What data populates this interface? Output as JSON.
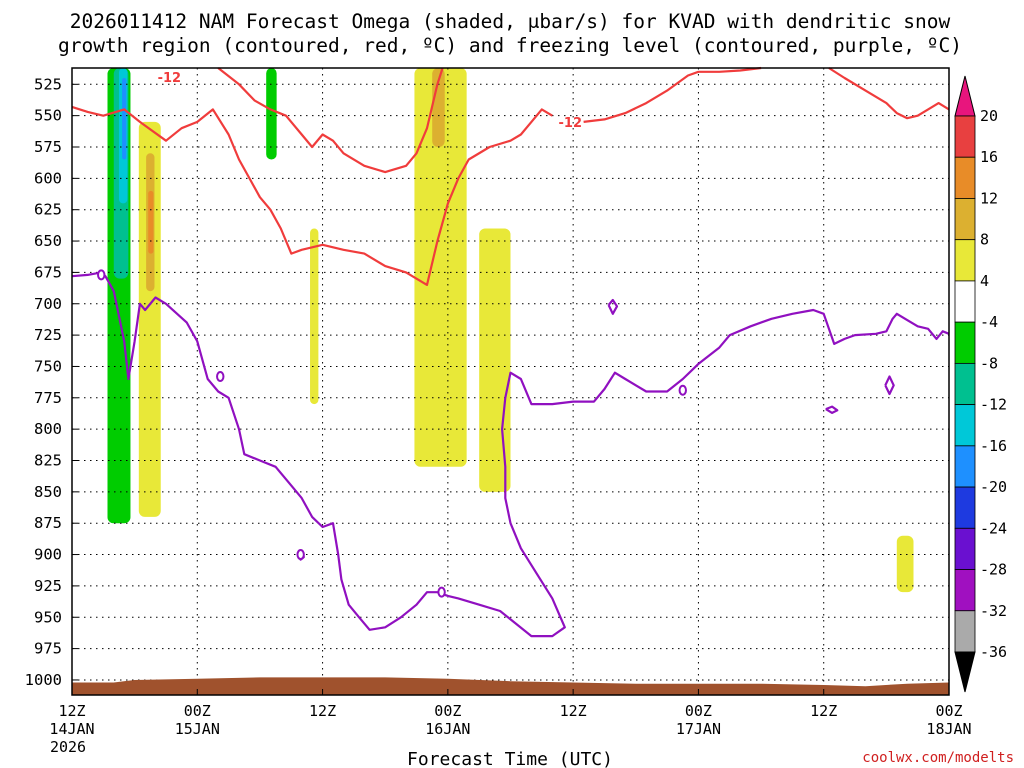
{
  "chart_data": {
    "type": "heatmap",
    "title_lines": [
      "2026011412 NAM Forecast Omega (shaded, μbar/s) for KVAD with dendritic snow",
      "growth region (contoured, red, ºC) and freezing level (contoured, purple, ºC)"
    ],
    "xlabel": "Forecast Time (UTC)",
    "credit": "coolwx.com/modelts",
    "x_ticks": [
      {
        "hour": 0,
        "lines": [
          "12Z",
          "14JAN",
          "2026"
        ]
      },
      {
        "hour": 12,
        "lines": [
          "00Z",
          "15JAN"
        ]
      },
      {
        "hour": 24,
        "lines": [
          "12Z"
        ]
      },
      {
        "hour": 36,
        "lines": [
          "00Z",
          "16JAN"
        ]
      },
      {
        "hour": 48,
        "lines": [
          "12Z"
        ]
      },
      {
        "hour": 60,
        "lines": [
          "00Z",
          "17JAN"
        ]
      },
      {
        "hour": 72,
        "lines": [
          "12Z"
        ]
      },
      {
        "hour": 84,
        "lines": [
          "00Z",
          "18JAN"
        ]
      }
    ],
    "xlim": [
      0,
      84
    ],
    "y_ticks": [
      525,
      550,
      575,
      600,
      625,
      650,
      675,
      700,
      725,
      750,
      775,
      800,
      825,
      850,
      875,
      900,
      925,
      950,
      975,
      1000
    ],
    "ylim": [
      512,
      1012
    ],
    "colorbar": {
      "labels": [
        "20",
        "16",
        "12",
        "8",
        "4",
        "-4",
        "-8",
        "-12",
        "-16",
        "-20",
        "-24",
        "-28",
        "-32",
        "-36"
      ],
      "bands": [
        {
          "color": "#e8e838",
          "from": 4,
          "to": 8
        },
        {
          "color": "#dcb030",
          "from": 8,
          "to": 12
        },
        {
          "color": "#e88c28",
          "from": 12,
          "to": 16
        },
        {
          "color": "#e84040",
          "from": 16,
          "to": 20
        },
        {
          "color": "#00cc00",
          "from": -8,
          "to": -4
        },
        {
          "color": "#00c090",
          "from": -12,
          "to": -8
        },
        {
          "color": "#00c8d8",
          "from": -16,
          "to": -12
        },
        {
          "color": "#1e90ff",
          "from": -20,
          "to": -16
        },
        {
          "color": "#1e3ae0",
          "from": -24,
          "to": -20
        },
        {
          "color": "#6a10d0",
          "from": -28,
          "to": -24
        },
        {
          "color": "#a010c0",
          "from": -32,
          "to": -28
        },
        {
          "color": "#aaaaaa",
          "from": -36,
          "to": -32
        }
      ]
    },
    "omega_regions": [
      {
        "color": "#00cc00",
        "hours": [
          3.4,
          5.6
        ],
        "pressures": [
          512,
          875
        ]
      },
      {
        "color": "#00c090",
        "hours": [
          4.0,
          5.4
        ],
        "pressures": [
          512,
          680
        ]
      },
      {
        "color": "#00c8d8",
        "hours": [
          4.5,
          5.3
        ],
        "pressures": [
          512,
          620
        ]
      },
      {
        "color": "#1e90ff",
        "hours": [
          4.8,
          5.2
        ],
        "pressures": [
          520,
          585
        ]
      },
      {
        "color": "#e8e838",
        "hours": [
          6.4,
          8.5
        ],
        "pressures": [
          555,
          870
        ]
      },
      {
        "color": "#dcb030",
        "hours": [
          7.1,
          7.9
        ],
        "pressures": [
          580,
          690
        ]
      },
      {
        "color": "#e88c28",
        "hours": [
          7.3,
          7.8
        ],
        "pressures": [
          610,
          660
        ]
      },
      {
        "color": "#00cc00",
        "hours": [
          18.6,
          19.6
        ],
        "pressures": [
          512,
          585
        ]
      },
      {
        "color": "#e8e838",
        "hours": [
          22.8,
          23.6
        ],
        "pressures": [
          640,
          780
        ]
      },
      {
        "color": "#e8e838",
        "hours": [
          32.8,
          37.8
        ],
        "pressures": [
          512,
          830
        ]
      },
      {
        "color": "#dcb030",
        "hours": [
          34.5,
          35.7
        ],
        "pressures": [
          512,
          575
        ]
      },
      {
        "color": "#e8e838",
        "hours": [
          39.0,
          42.0
        ],
        "pressures": [
          640,
          850
        ]
      },
      {
        "color": "#e8e838",
        "hours": [
          79.0,
          80.6
        ],
        "pressures": [
          885,
          930
        ]
      }
    ],
    "dendritic_contours": [
      {
        "label": "-12",
        "points": [
          [
            0,
            543
          ],
          [
            1.5,
            547
          ],
          [
            3,
            550
          ],
          [
            5,
            545
          ],
          [
            6.5,
            555
          ],
          [
            9,
            570
          ],
          [
            10.5,
            560
          ],
          [
            12,
            555
          ],
          [
            13.5,
            545
          ],
          [
            15,
            565
          ],
          [
            16,
            585
          ],
          [
            17,
            600
          ],
          [
            18,
            615
          ],
          [
            19,
            625
          ],
          [
            20,
            640
          ],
          [
            21,
            660
          ],
          [
            22,
            657
          ],
          [
            24,
            653
          ],
          [
            26,
            657
          ],
          [
            28,
            660
          ],
          [
            30,
            670
          ],
          [
            32,
            675
          ],
          [
            34,
            685
          ],
          [
            35,
            650
          ],
          [
            36,
            620
          ],
          [
            37,
            600
          ],
          [
            38,
            585
          ],
          [
            40,
            575
          ],
          [
            42,
            570
          ],
          [
            43,
            565
          ],
          [
            44,
            555
          ],
          [
            45,
            545
          ],
          [
            46,
            550
          ]
        ]
      },
      {
        "label": "-12",
        "points": [
          [
            14,
            512
          ],
          [
            16,
            525
          ],
          [
            17.5,
            538
          ],
          [
            19,
            545
          ],
          [
            20.5,
            550
          ],
          [
            22,
            565
          ],
          [
            23,
            575
          ],
          [
            24,
            565
          ],
          [
            25,
            570
          ],
          [
            26,
            580
          ],
          [
            28,
            590
          ],
          [
            30,
            595
          ],
          [
            32,
            590
          ],
          [
            33,
            580
          ],
          [
            34,
            560
          ],
          [
            35,
            525
          ],
          [
            35.5,
            512
          ]
        ]
      },
      {
        "label": "",
        "points": [
          [
            49,
            555
          ],
          [
            51,
            553
          ],
          [
            53,
            548
          ],
          [
            55,
            540
          ],
          [
            57,
            530
          ],
          [
            59,
            518
          ],
          [
            60,
            515
          ],
          [
            62,
            515
          ],
          [
            64,
            514
          ],
          [
            66,
            512
          ]
        ]
      },
      {
        "label": "",
        "points": [
          [
            72.5,
            512
          ],
          [
            74,
            520
          ],
          [
            76,
            530
          ],
          [
            78,
            540
          ],
          [
            79,
            548
          ],
          [
            80,
            552
          ],
          [
            81,
            550
          ],
          [
            82,
            545
          ],
          [
            83,
            540
          ],
          [
            84,
            545
          ]
        ]
      }
    ],
    "freezing_contours": [
      {
        "label": "0",
        "points": [
          [
            0,
            678
          ],
          [
            1.5,
            677
          ],
          [
            2.8,
            675
          ],
          [
            3.2,
            678
          ],
          [
            4,
            690
          ],
          [
            5,
            730
          ],
          [
            5.4,
            760
          ],
          [
            6,
            730
          ],
          [
            6.5,
            700
          ],
          [
            7,
            705
          ],
          [
            8,
            695
          ],
          [
            9,
            700
          ],
          [
            11,
            715
          ],
          [
            12,
            730
          ],
          [
            13,
            760
          ],
          [
            14,
            770
          ],
          [
            15,
            775
          ],
          [
            16,
            800
          ],
          [
            16.5,
            820
          ],
          [
            18,
            825
          ],
          [
            19.5,
            830
          ],
          [
            21,
            845
          ],
          [
            22,
            855
          ],
          [
            23,
            870
          ],
          [
            24,
            878
          ],
          [
            25,
            875
          ],
          [
            25.5,
            900
          ],
          [
            25.8,
            920
          ],
          [
            26.5,
            940
          ],
          [
            27.5,
            950
          ],
          [
            28.5,
            960
          ],
          [
            30,
            958
          ],
          [
            31.5,
            950
          ],
          [
            33,
            940
          ],
          [
            34,
            930
          ],
          [
            35,
            930
          ],
          [
            36,
            933
          ],
          [
            37,
            935
          ],
          [
            39,
            940
          ],
          [
            41,
            945
          ],
          [
            42.5,
            955
          ],
          [
            44,
            965
          ],
          [
            46,
            965
          ],
          [
            47.2,
            958
          ],
          [
            46,
            935
          ],
          [
            44.5,
            915
          ],
          [
            43,
            895
          ],
          [
            42,
            875
          ],
          [
            41.5,
            855
          ],
          [
            41.5,
            830
          ],
          [
            41.2,
            800
          ],
          [
            41.5,
            775
          ],
          [
            42,
            755
          ],
          [
            43,
            760
          ],
          [
            44,
            780
          ],
          [
            46,
            780
          ],
          [
            48,
            778
          ],
          [
            50,
            778
          ],
          [
            51,
            768
          ],
          [
            52,
            755
          ],
          [
            53,
            760
          ],
          [
            54,
            765
          ],
          [
            55,
            770
          ],
          [
            57,
            770
          ],
          [
            58.5,
            760
          ],
          [
            60,
            748
          ],
          [
            62,
            735
          ],
          [
            63,
            725
          ],
          [
            65,
            718
          ],
          [
            67,
            712
          ],
          [
            69,
            708
          ],
          [
            71,
            705
          ],
          [
            72,
            708
          ],
          [
            73,
            732
          ],
          [
            73.5,
            730
          ],
          [
            74,
            728
          ],
          [
            75,
            725
          ],
          [
            77,
            724
          ],
          [
            78,
            722
          ],
          [
            78.6,
            712
          ],
          [
            79,
            708
          ],
          [
            80,
            713
          ],
          [
            81,
            718
          ],
          [
            82,
            720
          ],
          [
            82.8,
            728
          ],
          [
            83.4,
            722
          ],
          [
            84,
            724
          ]
        ]
      },
      {
        "label": "",
        "points": [
          [
            21.8,
            900
          ],
          [
            22.1,
            898
          ],
          [
            22.2,
            902
          ],
          [
            21.9,
            904
          ],
          [
            21.8,
            900
          ]
        ]
      },
      {
        "label": "",
        "points": [
          [
            51.4,
            701
          ],
          [
            51.8,
            697
          ],
          [
            52.2,
            702
          ],
          [
            51.8,
            708
          ],
          [
            51.4,
            701
          ]
        ]
      },
      {
        "label": "",
        "points": [
          [
            72.2,
            784
          ],
          [
            72.8,
            782
          ],
          [
            73.3,
            785
          ],
          [
            72.8,
            787
          ],
          [
            72.2,
            784
          ]
        ]
      },
      {
        "label": "",
        "points": [
          [
            77.9,
            765
          ],
          [
            78.3,
            758
          ],
          [
            78.7,
            765
          ],
          [
            78.3,
            772
          ],
          [
            77.9,
            765
          ]
        ]
      }
    ],
    "terrain_color": "#a0522d",
    "terrain_top": [
      [
        0,
        1002
      ],
      [
        4,
        1002
      ],
      [
        6,
        1000
      ],
      [
        12,
        999
      ],
      [
        18,
        998
      ],
      [
        30,
        998
      ],
      [
        36,
        999
      ],
      [
        42,
        1001
      ],
      [
        54,
        1003
      ],
      [
        66,
        1003
      ],
      [
        72,
        1004
      ],
      [
        76,
        1005
      ],
      [
        80,
        1003
      ],
      [
        84,
        1002
      ]
    ],
    "contour_colors": {
      "dendritic": "#f03c3c",
      "freezing": "#9010c0"
    }
  }
}
